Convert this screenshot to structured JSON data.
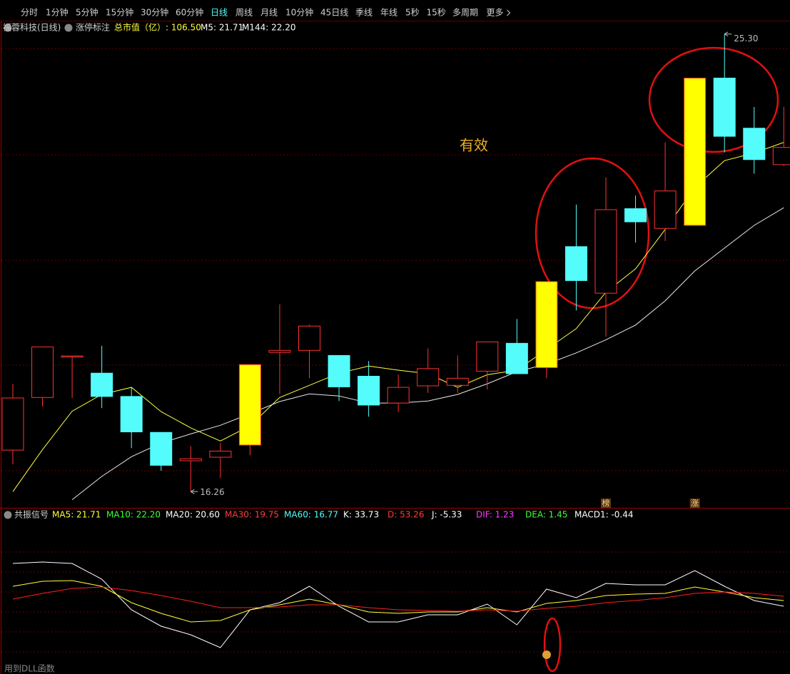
{
  "toolbar": {
    "tabs": [
      "分时",
      "1分钟",
      "5分钟",
      "15分钟",
      "30分钟",
      "60分钟",
      "日线",
      "周线",
      "月线",
      "10分钟",
      "45日线",
      "季线",
      "年线",
      "5秒",
      "15秒",
      "多周期",
      "更多"
    ],
    "active": 6
  },
  "info": {
    "name": "福蓉科技(日线)",
    "marker": "涨停标注",
    "cap": "总市值（亿）: 106.50",
    "m5": "M5: 21.71",
    "m144": "M144: 22.20"
  },
  "indicator_header": {
    "name": "共振信号",
    "items": [
      {
        "text": "MA5: 21.71",
        "color": "#ffff3c"
      },
      {
        "text": "MA10: 22.20",
        "color": "#3cff3c"
      },
      {
        "text": "MA20: 20.60",
        "color": "#ffffff"
      },
      {
        "text": "MA30: 19.75",
        "color": "#ff3c3c"
      },
      {
        "text": "MA60: 16.77",
        "color": "#54fcfc"
      },
      {
        "text": "K: 33.73",
        "color": "#ffffff"
      },
      {
        "text": "D: 53.26",
        "color": "#ff3c3c"
      },
      {
        "text": "J: -5.33",
        "color": "#ffffff"
      },
      {
        "text": "DIF: 1.23",
        "color": "#ff3cff"
      },
      {
        "text": "DEA: 1.45",
        "color": "#3cff3c"
      },
      {
        "text": "MACD1: -0.44",
        "color": "#ffffff"
      }
    ]
  },
  "footer": "用到DLL函数",
  "chart_data": [
    {
      "type": "candlestick",
      "open": [
        17.08,
        18.12,
        18.94,
        18.6,
        18.14,
        17.43,
        16.87,
        16.94,
        17.18,
        19.01,
        19.05,
        18.95,
        18.54,
        18.01,
        18.35,
        18.36,
        18.64,
        19.19,
        18.71,
        21.1,
        20.18,
        21.85,
        21.46,
        21.52,
        24.43,
        23.44,
        22.72
      ],
      "close": [
        18.11,
        19.12,
        18.94,
        18.14,
        17.44,
        16.78,
        16.91,
        17.06,
        18.77,
        19.05,
        19.53,
        18.33,
        17.97,
        18.32,
        18.69,
        18.5,
        19.22,
        18.59,
        20.41,
        20.43,
        21.83,
        21.59,
        22.2,
        24.43,
        23.28,
        22.82,
        23.06
      ],
      "high": [
        18.39,
        19.12,
        18.94,
        19.14,
        18.33,
        17.43,
        17.16,
        17.22,
        18.77,
        19.96,
        19.56,
        18.95,
        18.84,
        18.57,
        19.09,
        18.95,
        19.22,
        19.67,
        20.41,
        21.93,
        22.47,
        22.11,
        23.16,
        24.43,
        25.3,
        23.86,
        23.86
      ],
      "low": [
        16.8,
        17.94,
        18.11,
        17.91,
        17.12,
        16.67,
        16.26,
        16.53,
        16.98,
        18.19,
        18.5,
        18.05,
        17.74,
        17.83,
        18.21,
        18.21,
        18.28,
        18.59,
        18.5,
        19.84,
        19.32,
        21.18,
        21.21,
        21.52,
        22.96,
        22.54,
        22.69
      ],
      "limit_up": [
        8,
        18,
        23
      ],
      "up_color": "#ff3232",
      "down_color": "#54fcfc",
      "limit_color": "#ffff00",
      "series": [
        {
          "color": "#ffff3c",
          "values": [
            16.26,
            17.09,
            17.85,
            18.18,
            18.32,
            17.84,
            17.52,
            17.26,
            17.56,
            18.12,
            18.36,
            18.6,
            18.74,
            18.66,
            18.59,
            18.32,
            18.57,
            18.66,
            19.07,
            19.48,
            20.2,
            20.66,
            21.44,
            22.27,
            22.8,
            22.95,
            23.16
          ]
        },
        {
          "color": "#e8e8e8",
          "values": [
            null,
            null,
            16.1,
            16.56,
            16.95,
            17.22,
            17.4,
            17.57,
            17.8,
            18.04,
            18.19,
            18.15,
            18.01,
            18.01,
            18.05,
            18.18,
            18.39,
            18.63,
            18.78,
            19.0,
            19.26,
            19.55,
            20.03,
            20.62,
            21.07,
            21.52,
            21.87
          ]
        }
      ],
      "ylim": [
        15.94,
        25.55
      ],
      "high_label": "25.30",
      "low_label": "16.26",
      "annotation": "有效",
      "markers": [
        {
          "index": 20,
          "text": "榜"
        },
        {
          "index": 23,
          "text": "涨"
        }
      ]
    },
    {
      "type": "line",
      "series": [
        {
          "color": "#ffffff",
          "values": [
            92.0,
            93.6,
            92.0,
            74.4,
            40.0,
            21.6,
            12.0,
            -2.4,
            40.0,
            48.0,
            66.4,
            44.0,
            26.4,
            26.4,
            34.4,
            34.4,
            46.4,
            23.2,
            63.2,
            53.6,
            69.6,
            68.0,
            68.0,
            84.0,
            66.4,
            50.4,
            44.0
          ]
        },
        {
          "color": "#ffff3c",
          "values": [
            66.4,
            72.0,
            72.8,
            66.4,
            48.0,
            36.0,
            26.4,
            28.0,
            40.0,
            45.6,
            52.0,
            45.6,
            37.6,
            36.0,
            37.6,
            37.6,
            42.4,
            37.6,
            47.2,
            50.4,
            56.0,
            57.6,
            58.4,
            65.6,
            60.0,
            53.6,
            50.4
          ]
        },
        {
          "color": "#ff2020",
          "values": [
            52.0,
            58.4,
            64.0,
            65.6,
            61.6,
            56.0,
            49.6,
            42.4,
            42.4,
            43.2,
            45.6,
            45.6,
            42.4,
            40.0,
            39.2,
            38.4,
            40.0,
            38.4,
            41.6,
            44.0,
            48.0,
            50.4,
            53.6,
            58.4,
            60.0,
            58.4,
            55.2
          ]
        }
      ],
      "ylim": [
        -28,
        140
      ]
    }
  ]
}
